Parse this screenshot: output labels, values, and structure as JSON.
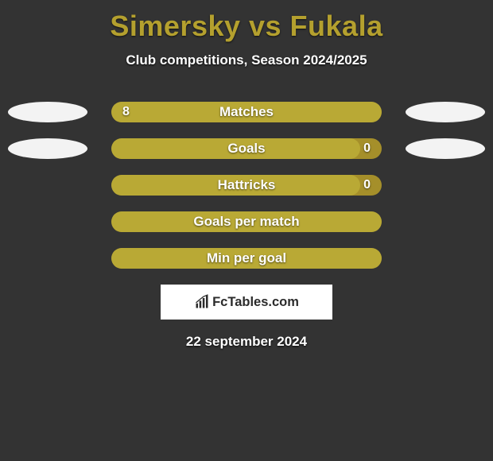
{
  "background_color": "#333333",
  "title": {
    "text": "Simersky vs Fukala",
    "color": "#b4a02e",
    "fontsize": 36
  },
  "subtitle": "Club competitions, Season 2024/2025",
  "attribution": "FcTables.com",
  "date": "22 september 2024",
  "ellipse_color": "#f3f3f3",
  "bar_bg_color": "#a58f2a",
  "bar_fill_color": "#b9a935",
  "rows": [
    {
      "label": "Matches",
      "left_value": "8",
      "right_value": "",
      "fill_pct": 100,
      "show_left_ellipse": true,
      "show_right_ellipse": true
    },
    {
      "label": "Goals",
      "left_value": "",
      "right_value": "0",
      "fill_pct": 92,
      "show_left_ellipse": true,
      "show_right_ellipse": true
    },
    {
      "label": "Hattricks",
      "left_value": "",
      "right_value": "0",
      "fill_pct": 92,
      "show_left_ellipse": false,
      "show_right_ellipse": false
    },
    {
      "label": "Goals per match",
      "left_value": "",
      "right_value": "",
      "fill_pct": 100,
      "show_left_ellipse": false,
      "show_right_ellipse": false
    },
    {
      "label": "Min per goal",
      "left_value": "",
      "right_value": "",
      "fill_pct": 100,
      "show_left_ellipse": false,
      "show_right_ellipse": false
    }
  ]
}
